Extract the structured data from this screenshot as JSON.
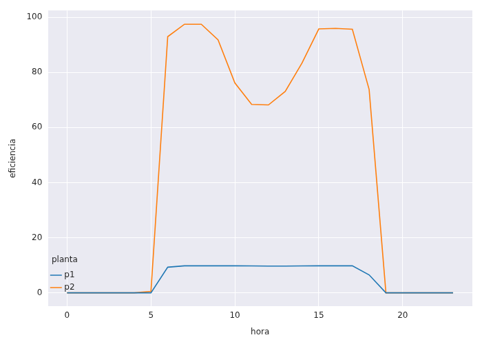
{
  "chart_data": {
    "type": "line",
    "x_label": "hora",
    "y_label": "eficiencia",
    "legend_title": "planta",
    "x": [
      0,
      1,
      2,
      3,
      4,
      5,
      6,
      7,
      8,
      9,
      10,
      11,
      12,
      13,
      14,
      15,
      16,
      17,
      18,
      19,
      20,
      21,
      22,
      23
    ],
    "series": [
      {
        "name": "p1",
        "color": "#1f77b4",
        "values": [
          0,
          0,
          0,
          0,
          0,
          0,
          9.3,
          9.8,
          9.8,
          9.8,
          9.8,
          9.75,
          9.7,
          9.7,
          9.75,
          9.8,
          9.8,
          9.8,
          6.5,
          0,
          0,
          0,
          0,
          0
        ]
      },
      {
        "name": "p2",
        "color": "#ff7f0e",
        "values": [
          0,
          0,
          0,
          0,
          0,
          0.5,
          93,
          97.5,
          97.5,
          91.8,
          76.2,
          68.4,
          68.2,
          73.1,
          83.4,
          95.8,
          96,
          95.7,
          73.8,
          0,
          0,
          0,
          0,
          0
        ]
      }
    ],
    "xlim": [
      -1.15,
      24.15
    ],
    "xticks": [
      0,
      5,
      10,
      15,
      20
    ],
    "ylim": [
      -4.9,
      102.5
    ],
    "yticks": [
      0,
      20,
      40,
      60,
      80,
      100
    ],
    "grid": true,
    "legend": "upper right"
  }
}
